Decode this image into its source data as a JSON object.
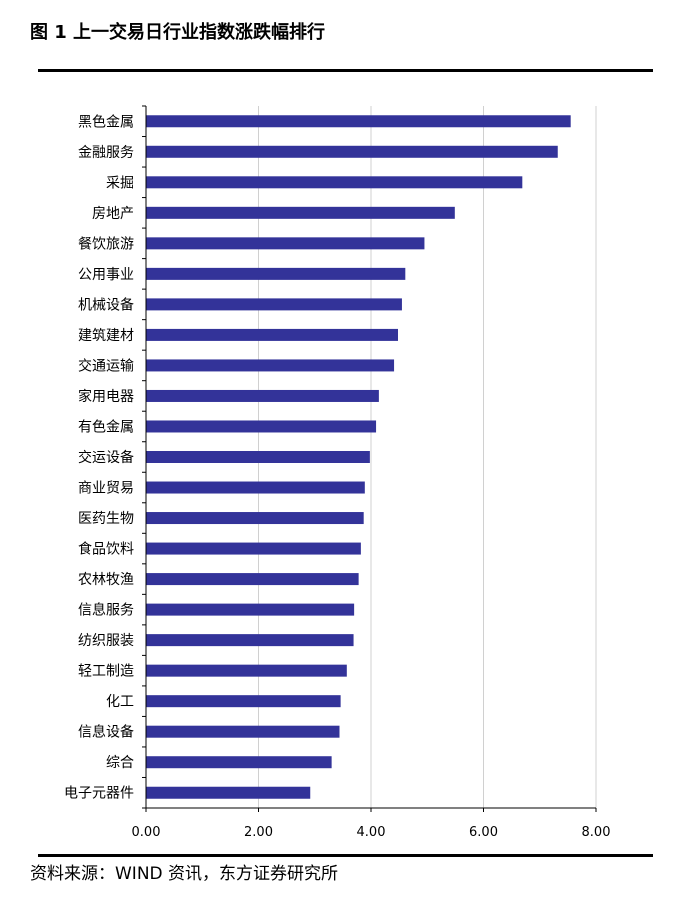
{
  "title": "图 1 上一交易日行业指数涨跌幅排行",
  "source": "资料来源：WIND 资讯，东方证券研究所",
  "colors": {
    "bar": "#333399",
    "grid": "#d0d0d0",
    "axis": "#000000"
  },
  "chart_data": {
    "type": "bar",
    "orientation": "horizontal",
    "title": "图 1 上一交易日行业指数涨跌幅排行",
    "xlabel": "",
    "ylabel": "",
    "xlim": [
      0,
      8
    ],
    "xticks": [
      0,
      2,
      4,
      6,
      8
    ],
    "xtick_labels": [
      "0.00",
      "2.00",
      "4.00",
      "6.00",
      "8.00"
    ],
    "grid": "vertical",
    "legend": "none",
    "categories": [
      "黑色金属",
      "金融服务",
      "采掘",
      "房地产",
      "餐饮旅游",
      "公用事业",
      "机械设备",
      "建筑建材",
      "交通运输",
      "家用电器",
      "有色金属",
      "交运设备",
      "商业贸易",
      "医药生物",
      "食品饮料",
      "农林牧渔",
      "信息服务",
      "纺织服装",
      "轻工制造",
      "化工",
      "信息设备",
      "综合",
      "电子元器件"
    ],
    "values": [
      7.55,
      7.32,
      6.69,
      5.49,
      4.95,
      4.61,
      4.55,
      4.48,
      4.41,
      4.14,
      4.09,
      3.98,
      3.89,
      3.87,
      3.82,
      3.78,
      3.7,
      3.69,
      3.57,
      3.46,
      3.44,
      3.3,
      2.92
    ]
  }
}
